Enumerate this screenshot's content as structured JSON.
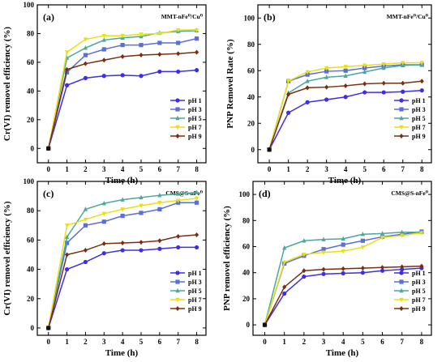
{
  "colors": {
    "pH 1": "#3b2ee6",
    "pH 3": "#5a6fd8",
    "pH 5": "#4ba89a",
    "pH 7": "#e8e013",
    "pH 9": "#7a2e10",
    "pH 0": "#000000"
  },
  "chart_data": [
    {
      "id": "a",
      "type": "line",
      "panel_label": "(a)",
      "title": "MMT-nFe⁰/Cu⁰",
      "xlabel": "Time (h)",
      "ylabel": "Cr(VI) removel efficiency (%)",
      "xlim": [
        -0.6,
        8.5
      ],
      "ylim": [
        -10,
        100
      ],
      "x_ticks": [
        0,
        1,
        2,
        3,
        4,
        5,
        6,
        7,
        8
      ],
      "y_ticks": [
        0,
        20,
        40,
        60,
        80,
        100
      ],
      "legend_position": "bottom-right",
      "x": [
        0,
        1,
        2,
        3,
        4,
        5,
        6,
        7,
        8
      ],
      "series": [
        {
          "name": "pH 1",
          "marker": "circle",
          "values": [
            0,
            44,
            49,
            50.5,
            51,
            50.5,
            53.5,
            53.5,
            54.5
          ]
        },
        {
          "name": "pH 3",
          "marker": "square",
          "values": [
            0,
            53,
            65,
            69,
            72,
            72,
            73.5,
            73.5,
            76.5
          ]
        },
        {
          "name": "pH 5",
          "marker": "triangle",
          "values": [
            0,
            63,
            70,
            75.5,
            77,
            78,
            80.5,
            81.5,
            82
          ]
        },
        {
          "name": "pH 7",
          "marker": "triangle-down",
          "values": [
            0,
            67,
            76,
            78.5,
            78.5,
            79.5,
            80,
            82.5,
            82.5
          ]
        },
        {
          "name": "pH 9",
          "marker": "diamond",
          "values": [
            0,
            55,
            59,
            61.5,
            64,
            65,
            65.5,
            66,
            67
          ]
        }
      ]
    },
    {
      "id": "b",
      "type": "line",
      "panel_label": "(b)",
      "title": "MMT-nFe⁰/Cu⁰",
      "xlabel": "Time (h)",
      "ylabel": "PNP Removel Rate (%)",
      "xlim": [
        -0.6,
        8.5
      ],
      "ylim": [
        -10,
        110
      ],
      "x_ticks": [
        0,
        1,
        2,
        3,
        4,
        5,
        6,
        7,
        8
      ],
      "y_ticks": [
        0,
        20,
        40,
        60,
        80,
        100
      ],
      "legend_position": "bottom-right",
      "x": [
        0,
        1,
        2,
        3,
        4,
        5,
        6,
        7,
        8
      ],
      "series": [
        {
          "name": "pH 1",
          "marker": "circle",
          "values": [
            0,
            28,
            36,
            38,
            40,
            43.5,
            43.5,
            44,
            45
          ]
        },
        {
          "name": "pH 3",
          "marker": "square",
          "values": [
            0,
            52,
            57,
            59.5,
            60,
            62,
            63.5,
            64.5,
            64.5
          ]
        },
        {
          "name": "pH 5",
          "marker": "triangle",
          "values": [
            0,
            43,
            52,
            55,
            56,
            59,
            62,
            64,
            64.5
          ]
        },
        {
          "name": "pH 7",
          "marker": "triangle-down",
          "values": [
            0,
            52,
            59,
            62,
            63,
            64,
            65,
            66,
            66
          ]
        },
        {
          "name": "pH 9",
          "marker": "diamond",
          "values": [
            0,
            42,
            47,
            47.5,
            48.5,
            50,
            50.5,
            50.5,
            52
          ]
        }
      ]
    },
    {
      "id": "c",
      "type": "line",
      "panel_label": "(c)",
      "title": "CMS@S-nFe⁰",
      "xlabel": "Time (h)",
      "ylabel": "Cr(VI) removel efficiency (%)",
      "xlim": [
        -0.6,
        8.5
      ],
      "ylim": [
        -5,
        100
      ],
      "x_ticks": [
        0,
        1,
        2,
        3,
        4,
        5,
        6,
        7,
        8
      ],
      "y_ticks": [
        0,
        20,
        40,
        60,
        80,
        100
      ],
      "legend_position": "bottom-right",
      "x": [
        0,
        1,
        2,
        3,
        4,
        5,
        6,
        7,
        8
      ],
      "series": [
        {
          "name": "pH 1",
          "marker": "circle",
          "values": [
            0,
            40,
            45,
            51,
            53,
            53,
            54,
            55,
            55
          ]
        },
        {
          "name": "pH 3",
          "marker": "square",
          "values": [
            0,
            58,
            70,
            72.5,
            76.5,
            78.5,
            81,
            85.5,
            85.5
          ]
        },
        {
          "name": "pH 5",
          "marker": "triangle",
          "values": [
            0,
            62,
            81,
            85,
            87.5,
            89,
            90.5,
            91.5,
            92.5
          ]
        },
        {
          "name": "pH 7",
          "marker": "triangle-down",
          "values": [
            0,
            70,
            74,
            78,
            81,
            83.5,
            85.5,
            87,
            88.5
          ]
        },
        {
          "name": "pH 9",
          "marker": "diamond",
          "values": [
            0,
            50,
            53,
            57.5,
            58,
            58.5,
            59.5,
            62.5,
            63.5
          ]
        }
      ]
    },
    {
      "id": "d",
      "type": "line",
      "panel_label": "(d)",
      "title": "CMS@S-nFe⁰",
      "xlabel": "Time (h)",
      "ylabel": "PNP removel efficiency (%)",
      "xlim": [
        -0.6,
        8.5
      ],
      "ylim": [
        -8,
        110
      ],
      "x_ticks": [
        0,
        1,
        2,
        3,
        4,
        5,
        6,
        7,
        8
      ],
      "y_ticks": [
        0,
        20,
        40,
        60,
        80,
        100
      ],
      "legend_position": "bottom-right",
      "x": [
        0,
        1,
        2,
        3,
        4,
        5,
        6,
        7,
        8
      ],
      "series": [
        {
          "name": "pH 1",
          "marker": "circle",
          "values": [
            0,
            24,
            37,
            39,
            39.5,
            40,
            41.5,
            42.5,
            43.5
          ]
        },
        {
          "name": "pH 3",
          "marker": "square",
          "values": [
            0,
            47,
            53,
            58,
            61.5,
            64.5,
            67.5,
            69.5,
            71.5
          ]
        },
        {
          "name": "pH 5",
          "marker": "triangle",
          "values": [
            0,
            59,
            64.5,
            65.5,
            66,
            69.5,
            70,
            71,
            71
          ]
        },
        {
          "name": "pH 7",
          "marker": "triangle-down",
          "values": [
            0,
            48,
            54,
            55.5,
            56.5,
            59.5,
            67,
            68.5,
            70.5
          ]
        },
        {
          "name": "pH 9",
          "marker": "diamond",
          "values": [
            0,
            29,
            41.5,
            42.5,
            43,
            43.5,
            44,
            44.5,
            45
          ]
        }
      ]
    }
  ]
}
